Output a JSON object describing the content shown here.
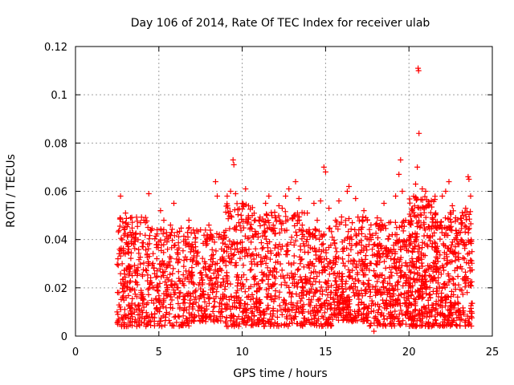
{
  "chart_data": {
    "type": "scatter",
    "title": "Day 106 of 2014, Rate Of TEC Index for receiver ulab",
    "xlabel": "GPS time / hours",
    "ylabel": "ROTI / TECUs",
    "xlim": [
      0,
      25
    ],
    "ylim": [
      0,
      0.12
    ],
    "x_ticks": [
      0,
      5,
      10,
      15,
      20,
      25
    ],
    "x_tick_labels": [
      "0",
      "5",
      "10",
      "15",
      "20",
      "25"
    ],
    "y_ticks": [
      0,
      0.02,
      0.04,
      0.06,
      0.08,
      0.1,
      0.12
    ],
    "y_tick_labels": [
      "0",
      "0.02",
      "0.04",
      "0.06",
      "0.08",
      "0.1",
      "0.12"
    ],
    "grid": true,
    "marker": "+",
    "marker_color": "#ff0000",
    "series": [
      {
        "name": "ROTI",
        "points": [
          [
            2.5,
            0.01
          ],
          [
            2.6,
            0.018
          ],
          [
            2.7,
            0.058
          ],
          [
            2.8,
            0.03
          ],
          [
            2.9,
            0.045
          ],
          [
            3.0,
            0.051
          ],
          [
            3.1,
            0.022
          ],
          [
            3.2,
            0.036
          ],
          [
            3.3,
            0.049
          ],
          [
            3.4,
            0.008
          ],
          [
            3.5,
            0.041
          ],
          [
            3.7,
            0.027
          ],
          [
            3.9,
            0.047
          ],
          [
            4.1,
            0.015
          ],
          [
            4.3,
            0.034
          ],
          [
            4.4,
            0.059
          ],
          [
            4.5,
            0.044
          ],
          [
            4.7,
            0.02
          ],
          [
            4.9,
            0.038
          ],
          [
            5.1,
            0.052
          ],
          [
            5.3,
            0.048
          ],
          [
            5.5,
            0.029
          ],
          [
            5.7,
            0.046
          ],
          [
            5.9,
            0.055
          ],
          [
            6.1,
            0.043
          ],
          [
            6.3,
            0.018
          ],
          [
            6.6,
            0.04
          ],
          [
            6.8,
            0.048
          ],
          [
            7.0,
            0.025
          ],
          [
            7.2,
            0.037
          ],
          [
            7.5,
            0.044
          ],
          [
            7.8,
            0.03
          ],
          [
            8.0,
            0.046
          ],
          [
            8.2,
            0.04
          ],
          [
            8.4,
            0.064
          ],
          [
            8.5,
            0.058
          ],
          [
            8.7,
            0.021
          ],
          [
            8.9,
            0.043
          ],
          [
            9.1,
            0.058
          ],
          [
            9.3,
            0.06
          ],
          [
            9.45,
            0.073
          ],
          [
            9.5,
            0.071
          ],
          [
            9.6,
            0.059
          ],
          [
            9.8,
            0.047
          ],
          [
            10.0,
            0.055
          ],
          [
            10.2,
            0.061
          ],
          [
            10.4,
            0.036
          ],
          [
            10.6,
            0.05
          ],
          [
            10.8,
            0.042
          ],
          [
            11.0,
            0.048
          ],
          [
            11.2,
            0.031
          ],
          [
            11.4,
            0.055
          ],
          [
            11.6,
            0.058
          ],
          [
            11.8,
            0.044
          ],
          [
            12.0,
            0.024
          ],
          [
            12.2,
            0.054
          ],
          [
            12.4,
            0.053
          ],
          [
            12.6,
            0.058
          ],
          [
            12.8,
            0.061
          ],
          [
            13.0,
            0.049
          ],
          [
            13.2,
            0.064
          ],
          [
            13.4,
            0.057
          ],
          [
            13.6,
            0.046
          ],
          [
            13.9,
            0.051
          ],
          [
            14.1,
            0.042
          ],
          [
            14.3,
            0.055
          ],
          [
            14.5,
            0.048
          ],
          [
            14.7,
            0.056
          ],
          [
            14.9,
            0.07
          ],
          [
            15.0,
            0.068
          ],
          [
            15.2,
            0.053
          ],
          [
            15.4,
            0.041
          ],
          [
            15.6,
            0.048
          ],
          [
            15.8,
            0.056
          ],
          [
            16.0,
            0.039
          ],
          [
            16.3,
            0.06
          ],
          [
            16.4,
            0.062
          ],
          [
            16.6,
            0.047
          ],
          [
            16.8,
            0.057
          ],
          [
            17.0,
            0.044
          ],
          [
            17.3,
            0.052
          ],
          [
            17.5,
            0.048
          ],
          [
            17.8,
            0.036
          ],
          [
            17.9,
            0.002
          ],
          [
            18.1,
            0.049
          ],
          [
            18.3,
            0.044
          ],
          [
            18.5,
            0.055
          ],
          [
            18.8,
            0.047
          ],
          [
            19.0,
            0.042
          ],
          [
            19.2,
            0.058
          ],
          [
            19.4,
            0.067
          ],
          [
            19.5,
            0.073
          ],
          [
            19.6,
            0.06
          ],
          [
            19.8,
            0.048
          ],
          [
            20.0,
            0.04
          ],
          [
            20.2,
            0.052
          ],
          [
            20.4,
            0.063
          ],
          [
            20.5,
            0.07
          ],
          [
            20.55,
            0.111
          ],
          [
            20.58,
            0.11
          ],
          [
            20.6,
            0.084
          ],
          [
            20.8,
            0.061
          ],
          [
            21.0,
            0.06
          ],
          [
            21.2,
            0.054
          ],
          [
            21.4,
            0.049
          ],
          [
            21.6,
            0.047
          ],
          [
            21.8,
            0.045
          ],
          [
            22.0,
            0.058
          ],
          [
            22.2,
            0.06
          ],
          [
            22.4,
            0.064
          ],
          [
            22.6,
            0.054
          ],
          [
            22.8,
            0.049
          ],
          [
            23.0,
            0.043
          ],
          [
            23.2,
            0.047
          ],
          [
            23.4,
            0.053
          ],
          [
            23.55,
            0.066
          ],
          [
            23.6,
            0.065
          ],
          [
            23.7,
            0.058
          ]
        ]
      }
    ],
    "dense_bands": [
      {
        "x_start": 2.5,
        "x_end": 4.6,
        "y_min": 0.004,
        "y_max": 0.05,
        "count": 260
      },
      {
        "x_start": 4.6,
        "x_end": 7.0,
        "y_min": 0.004,
        "y_max": 0.045,
        "count": 260
      },
      {
        "x_start": 7.0,
        "x_end": 9.0,
        "y_min": 0.006,
        "y_max": 0.044,
        "count": 220
      },
      {
        "x_start": 9.0,
        "x_end": 11.0,
        "y_min": 0.004,
        "y_max": 0.055,
        "count": 260
      },
      {
        "x_start": 11.0,
        "x_end": 13.8,
        "y_min": 0.004,
        "y_max": 0.052,
        "count": 320
      },
      {
        "x_start": 13.8,
        "x_end": 15.5,
        "y_min": 0.004,
        "y_max": 0.045,
        "count": 200
      },
      {
        "x_start": 15.5,
        "x_end": 17.6,
        "y_min": 0.006,
        "y_max": 0.05,
        "count": 280
      },
      {
        "x_start": 17.6,
        "x_end": 20.0,
        "y_min": 0.004,
        "y_max": 0.048,
        "count": 320
      },
      {
        "x_start": 20.0,
        "x_end": 21.6,
        "y_min": 0.004,
        "y_max": 0.058,
        "count": 320
      },
      {
        "x_start": 21.6,
        "x_end": 23.8,
        "y_min": 0.004,
        "y_max": 0.052,
        "count": 320
      }
    ]
  }
}
